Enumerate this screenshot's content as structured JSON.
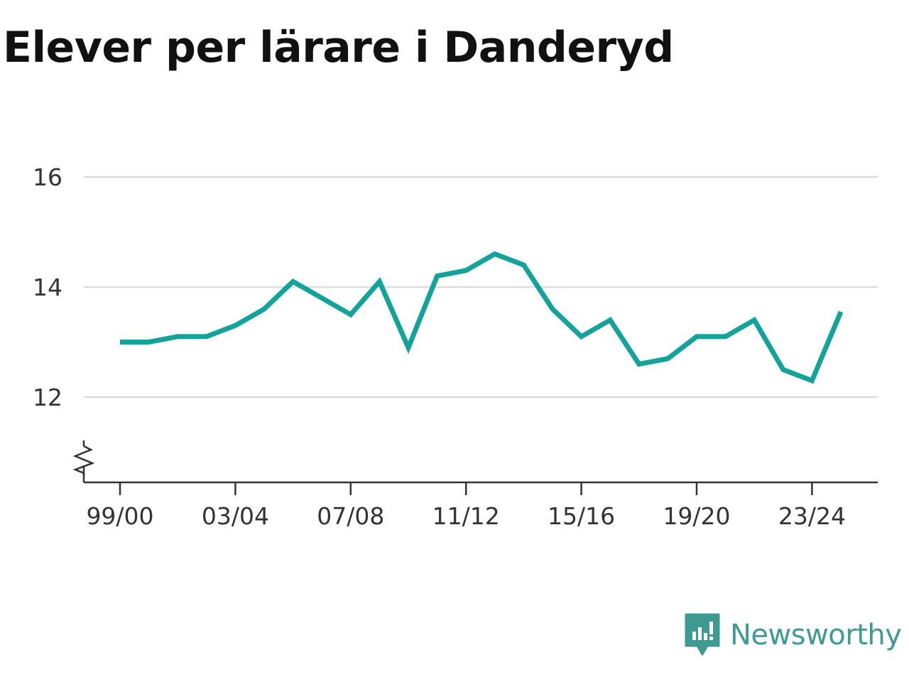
{
  "title": "Elever per lärare i Danderyd",
  "brand": {
    "name": "Newsworthy",
    "icon": "newsworthy-logo-icon",
    "color": "#3f9a92"
  },
  "chart_data": {
    "type": "line",
    "title": "Elever per lärare i Danderyd",
    "xlabel": "",
    "ylabel": "",
    "ylim": [
      10.5,
      16
    ],
    "yticks": [
      12,
      14,
      16
    ],
    "y_axis_break": true,
    "grid": true,
    "line_color": "#14a39a",
    "x_ticks": [
      "99/00",
      "03/04",
      "07/08",
      "11/12",
      "15/16",
      "19/20",
      "23/24"
    ],
    "x": [
      "99/00",
      "00/01",
      "01/02",
      "02/03",
      "03/04",
      "04/05",
      "05/06",
      "06/07",
      "07/08",
      "08/09",
      "09/10",
      "10/11",
      "11/12",
      "12/13",
      "13/14",
      "14/15",
      "15/16",
      "16/17",
      "17/18",
      "18/19",
      "19/20",
      "20/21",
      "21/22",
      "22/23",
      "23/24",
      "24/25"
    ],
    "series": [
      {
        "values": [
          13.0,
          13.0,
          13.1,
          13.1,
          13.3,
          13.6,
          14.1,
          13.8,
          13.5,
          14.1,
          12.9,
          14.2,
          14.3,
          14.6,
          14.4,
          13.6,
          13.1,
          13.4,
          12.6,
          12.7,
          13.1,
          13.1,
          13.4,
          12.5,
          12.3,
          13.55
        ]
      }
    ]
  }
}
